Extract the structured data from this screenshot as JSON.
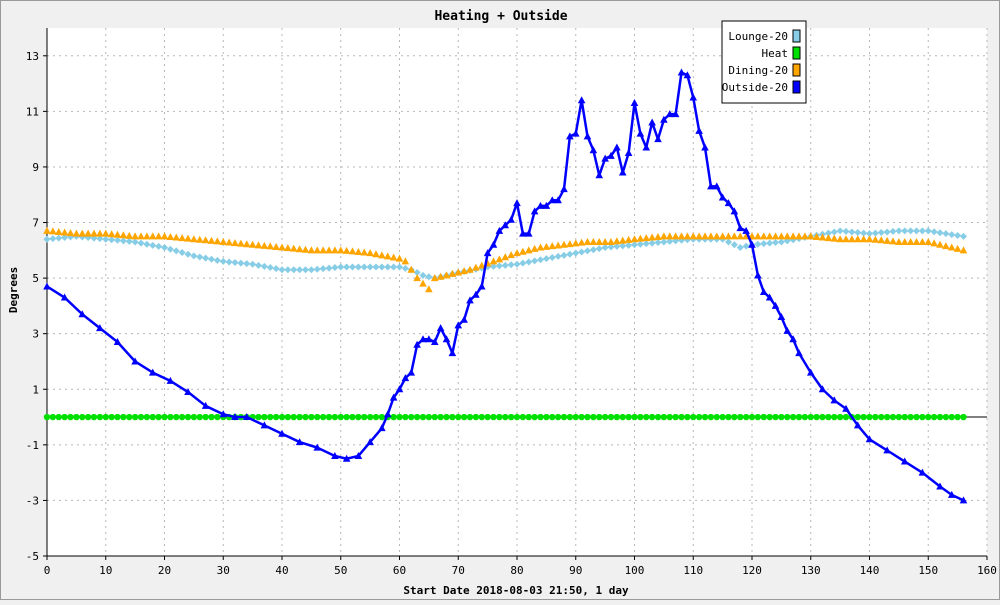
{
  "chart_data": {
    "type": "line",
    "title": "Heating + Outside",
    "xlabel": "Start Date 2018-08-03 21:50, 1 day",
    "ylabel": "Degrees",
    "xlim": [
      0,
      160
    ],
    "ylim": [
      -5,
      14
    ],
    "x_ticks": [
      0,
      10,
      20,
      30,
      40,
      50,
      60,
      70,
      80,
      90,
      100,
      110,
      120,
      130,
      140,
      150,
      160
    ],
    "y_ticks": [
      -5,
      -3,
      -1,
      1,
      3,
      5,
      7,
      9,
      11,
      13
    ],
    "grid": true,
    "legend_position": "top-right",
    "series": [
      {
        "name": "Lounge-20",
        "color": "#87cde6",
        "marker": "diamond",
        "line": false,
        "x": [
          0,
          5,
          10,
          15,
          20,
          25,
          30,
          35,
          40,
          45,
          50,
          55,
          60,
          62,
          64,
          66,
          70,
          75,
          80,
          85,
          90,
          95,
          100,
          105,
          110,
          115,
          118,
          120,
          125,
          130,
          135,
          140,
          145,
          150,
          156
        ],
        "values": [
          6.4,
          6.5,
          6.4,
          6.3,
          6.1,
          5.8,
          5.6,
          5.5,
          5.3,
          5.3,
          5.4,
          5.4,
          5.4,
          5.3,
          5.1,
          5.0,
          5.2,
          5.4,
          5.5,
          5.7,
          5.9,
          6.1,
          6.2,
          6.3,
          6.4,
          6.4,
          6.1,
          6.2,
          6.3,
          6.5,
          6.7,
          6.6,
          6.7,
          6.7,
          6.5
        ]
      },
      {
        "name": "Heat",
        "color": "#00e000",
        "marker": "circle",
        "line": false,
        "x": [
          0,
          156
        ],
        "values": [
          0,
          0
        ]
      },
      {
        "name": "Dining-20",
        "color": "#ffa500",
        "marker": "triangle",
        "line": false,
        "x": [
          0,
          5,
          10,
          15,
          20,
          25,
          30,
          35,
          40,
          45,
          50,
          55,
          60,
          61,
          62,
          63,
          64,
          65,
          66,
          68,
          72,
          76,
          80,
          84,
          88,
          92,
          96,
          100,
          105,
          110,
          115,
          120,
          125,
          130,
          135,
          140,
          145,
          150,
          156
        ],
        "values": [
          6.7,
          6.6,
          6.6,
          6.5,
          6.5,
          6.4,
          6.3,
          6.2,
          6.1,
          6.0,
          6.0,
          5.9,
          5.7,
          5.6,
          5.3,
          5.0,
          4.8,
          4.6,
          5.0,
          5.1,
          5.3,
          5.6,
          5.9,
          6.1,
          6.2,
          6.3,
          6.3,
          6.4,
          6.5,
          6.5,
          6.5,
          6.5,
          6.5,
          6.5,
          6.4,
          6.4,
          6.3,
          6.3,
          6.0
        ]
      },
      {
        "name": "Outside-20",
        "color": "#0000ff",
        "marker": "triangle",
        "line": true,
        "x": [
          0,
          3,
          6,
          9,
          12,
          15,
          18,
          21,
          24,
          27,
          30,
          32,
          34,
          37,
          40,
          43,
          46,
          49,
          51,
          53,
          55,
          57,
          58,
          59,
          60,
          61,
          62,
          63,
          64,
          65,
          66,
          67,
          68,
          69,
          70,
          71,
          72,
          73,
          74,
          75,
          76,
          77,
          78,
          79,
          80,
          81,
          82,
          83,
          84,
          85,
          86,
          87,
          88,
          89,
          90,
          91,
          92,
          93,
          94,
          95,
          96,
          97,
          98,
          99,
          100,
          101,
          102,
          103,
          104,
          105,
          106,
          107,
          108,
          109,
          110,
          111,
          112,
          113,
          114,
          115,
          116,
          117,
          118,
          119,
          120,
          121,
          122,
          123,
          124,
          125,
          126,
          127,
          128,
          130,
          132,
          134,
          136,
          138,
          140,
          143,
          146,
          149,
          152,
          154,
          156
        ],
        "values": [
          4.7,
          4.3,
          3.7,
          3.2,
          2.7,
          2.0,
          1.6,
          1.3,
          0.9,
          0.4,
          0.1,
          0.0,
          0.0,
          -0.3,
          -0.6,
          -0.9,
          -1.1,
          -1.4,
          -1.5,
          -1.4,
          -0.9,
          -0.4,
          0.1,
          0.7,
          1.0,
          1.4,
          1.6,
          2.6,
          2.8,
          2.8,
          2.7,
          3.2,
          2.8,
          2.3,
          3.3,
          3.5,
          4.2,
          4.4,
          4.7,
          5.9,
          6.2,
          6.7,
          6.9,
          7.1,
          7.7,
          6.6,
          6.6,
          7.4,
          7.6,
          7.6,
          7.8,
          7.8,
          8.2,
          10.1,
          10.2,
          11.4,
          10.1,
          9.6,
          8.7,
          9.3,
          9.4,
          9.7,
          8.8,
          9.5,
          11.3,
          10.2,
          9.7,
          10.6,
          10.0,
          10.7,
          10.9,
          10.9,
          12.4,
          12.3,
          11.5,
          10.3,
          9.7,
          8.3,
          8.3,
          7.9,
          7.7,
          7.4,
          6.8,
          6.7,
          6.2,
          5.1,
          4.5,
          4.3,
          4.0,
          3.6,
          3.1,
          2.8,
          2.3,
          1.6,
          1.0,
          0.6,
          0.3,
          -0.3,
          -0.8,
          -1.2,
          -1.6,
          -2.0,
          -2.5,
          -2.8,
          -3.0
        ]
      }
    ]
  }
}
